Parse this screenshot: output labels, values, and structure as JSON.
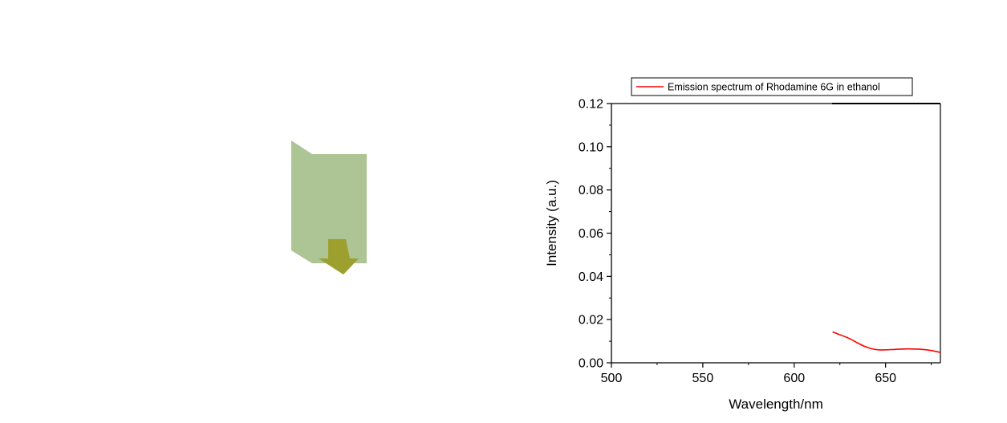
{
  "chart_data": {
    "type": "line",
    "xlabel": "Wavelength/nm",
    "ylabel": "Intensity (a.u.)",
    "xlim": [
      500,
      680
    ],
    "ylim": [
      0,
      0.12
    ],
    "x_ticks": [
      500,
      550,
      600,
      650
    ],
    "x_tick_labels": [
      "500",
      "550",
      "600",
      "650"
    ],
    "y_ticks": [
      0,
      0.02,
      0.04,
      0.06,
      0.08,
      0.1,
      0.12
    ],
    "y_tick_labels": [
      "0.00",
      "0.02",
      "0.04",
      "0.06",
      "0.08",
      "0.10",
      "0.12"
    ],
    "legend_position": "top",
    "grid": false,
    "series": [
      {
        "name": "Emission spectrum of Rhodamine 6G in ethanol",
        "color": "#ff0000",
        "x": [
          621,
          625,
          630,
          634,
          638,
          642,
          646,
          650,
          655,
          660,
          665,
          670,
          675,
          680
        ],
        "y": [
          0.0143,
          0.013,
          0.0113,
          0.0095,
          0.0078,
          0.0066,
          0.006,
          0.006,
          0.0062,
          0.0064,
          0.0064,
          0.0062,
          0.0057,
          0.0048
        ]
      }
    ]
  },
  "illustration": {
    "colors": {
      "cuvette": "#adc495",
      "arrow": "#9da02e"
    }
  }
}
